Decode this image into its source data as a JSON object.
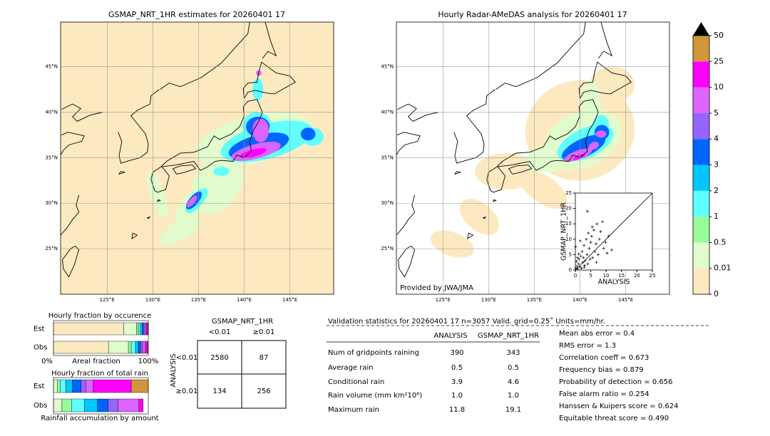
{
  "left_map": {
    "title": "GSMAP_NRT_1HR estimates for 20260401 17"
  },
  "right_map": {
    "title": "Hourly Radar-AMeDAS analysis for 20260401 17",
    "credit": "Provided by JWA/JMA"
  },
  "map_axes": {
    "xlim": [
      119.9,
      149.8
    ],
    "ylim": [
      20,
      49.9
    ],
    "lon_ticks": [
      {
        "value": 125,
        "label": "125°E"
      },
      {
        "value": 130,
        "label": "130°E"
      },
      {
        "value": 135,
        "label": "135°E"
      },
      {
        "value": 140,
        "label": "140°E"
      },
      {
        "value": 145,
        "label": "145°E"
      }
    ],
    "lat_ticks": [
      {
        "value": 25,
        "label": "25°N"
      },
      {
        "value": 30,
        "label": "30°N"
      },
      {
        "value": 35,
        "label": "35°N"
      },
      {
        "value": 40,
        "label": "40°N"
      },
      {
        "value": 45,
        "label": "45°N"
      }
    ]
  },
  "colorbar": {
    "boundaries": [
      0,
      0.01,
      0.5,
      1,
      2,
      3,
      4,
      5,
      10,
      25,
      50
    ],
    "colors": [
      "#fde9c0",
      "#e0fccc",
      "#98fb98",
      "#60fefe",
      "#00c8ff",
      "#0064ff",
      "#9664ff",
      "#dc64ff",
      "#ff00ff",
      "#d0973a"
    ],
    "extend_color": "#000000"
  },
  "scatter": {
    "xlabel": "ANALYSIS",
    "ylabel": "GSMAP_NRT_1HR",
    "xlim": [
      0,
      25
    ],
    "ylim": [
      0,
      25
    ],
    "ticks": [
      0,
      5,
      10,
      15,
      20,
      25
    ],
    "points": [
      [
        0.2,
        0.5
      ],
      [
        0.5,
        1.2
      ],
      [
        0.8,
        0.3
      ],
      [
        1,
        2
      ],
      [
        1.2,
        3.5
      ],
      [
        1.5,
        1
      ],
      [
        1.8,
        4.5
      ],
      [
        2,
        0.6
      ],
      [
        2.2,
        6
      ],
      [
        2.5,
        2.5
      ],
      [
        2.8,
        8
      ],
      [
        3,
        1.5
      ],
      [
        3.2,
        3
      ],
      [
        3.5,
        10
      ],
      [
        3.8,
        5
      ],
      [
        4,
        2
      ],
      [
        4.2,
        12
      ],
      [
        4.5,
        7
      ],
      [
        4.8,
        3.5
      ],
      [
        5,
        9
      ],
      [
        5.3,
        11
      ],
      [
        5.6,
        4
      ],
      [
        6,
        13
      ],
      [
        6.3,
        6
      ],
      [
        6.7,
        8.5
      ],
      [
        7,
        15
      ],
      [
        7.4,
        5
      ],
      [
        7.8,
        10
      ],
      [
        8.2,
        12.5
      ],
      [
        8.8,
        15.7
      ],
      [
        9.2,
        7
      ],
      [
        9.8,
        9
      ],
      [
        10.3,
        5.5
      ],
      [
        10.8,
        11
      ],
      [
        11.8,
        6.5
      ],
      [
        0.4,
        2.8
      ],
      [
        1.1,
        5.2
      ],
      [
        2.6,
        4
      ],
      [
        3.9,
        19.1
      ],
      [
        0.1,
        7.5
      ],
      [
        1.6,
        9.5
      ],
      [
        5.5,
        14
      ],
      [
        6.8,
        2.5
      ],
      [
        2.9,
        0.9
      ],
      [
        0.7,
        4
      ]
    ]
  },
  "occurrence": {
    "title": "Hourly fraction by occurence",
    "rows": [
      "Est",
      "Obs"
    ],
    "est": [
      74,
      13.5,
      2,
      2,
      2,
      1.5,
      1.5,
      1.5,
      1.5,
      0.5
    ],
    "obs": [
      58,
      21,
      3,
      4.5,
      3,
      2.3,
      2.2,
      3,
      2.2,
      0.8
    ],
    "xlabel_left": "0%",
    "xlabel": "Areal fraction",
    "xlabel_right": "100%"
  },
  "total_rain": {
    "title": "Hourly fraction of total rain",
    "rows": [
      "Est",
      "Obs"
    ],
    "est": [
      0,
      4,
      3,
      6,
      7,
      9,
      5,
      8,
      40,
      18
    ],
    "obs": [
      0,
      9,
      10,
      13.5,
      14,
      11,
      10.5,
      22,
      4.5,
      0
    ],
    "xlabel": "Rainfall accumulation by amount"
  },
  "contingency": {
    "title": "GSMAP_NRT_1HR",
    "col_labels": [
      "<0.01",
      "≥0.01"
    ],
    "row_title": "ANALYSIS",
    "row_labels": [
      "<0.01",
      "≥0.01"
    ],
    "cells": [
      [
        "2580",
        "87"
      ],
      [
        "134",
        "256"
      ]
    ]
  },
  "validation": {
    "header": "Validation statistics for 20260401 17  n=3057 Valid. grid=0.25˚ Units=mm/hr.",
    "col_labels": [
      "ANALYSIS",
      "GSMAP_NRT_1HR"
    ],
    "rows": [
      {
        "label": "Num of gridpoints raining",
        "values": [
          "390",
          "343"
        ]
      },
      {
        "label": "Average rain",
        "values": [
          "0.5",
          "0.5"
        ]
      },
      {
        "label": "Conditional rain",
        "values": [
          "3.9",
          "4.6"
        ]
      },
      {
        "label": "Rain volume (mm km²10⁶)",
        "values": [
          "1.0",
          "1.0"
        ]
      },
      {
        "label": "Maximum rain",
        "values": [
          "11.8",
          "19.1"
        ]
      }
    ],
    "scores": [
      "Mean abs error =    0.4",
      "RMS error =    1.3",
      "Correlation coeff =  0.673",
      "Frequency bias =  0.879",
      "Probability of detection =  0.656",
      "False alarm ratio =  0.254",
      "Hanssen & Kuipers score =  0.624",
      "Equitable threat score =  0.490"
    ]
  }
}
